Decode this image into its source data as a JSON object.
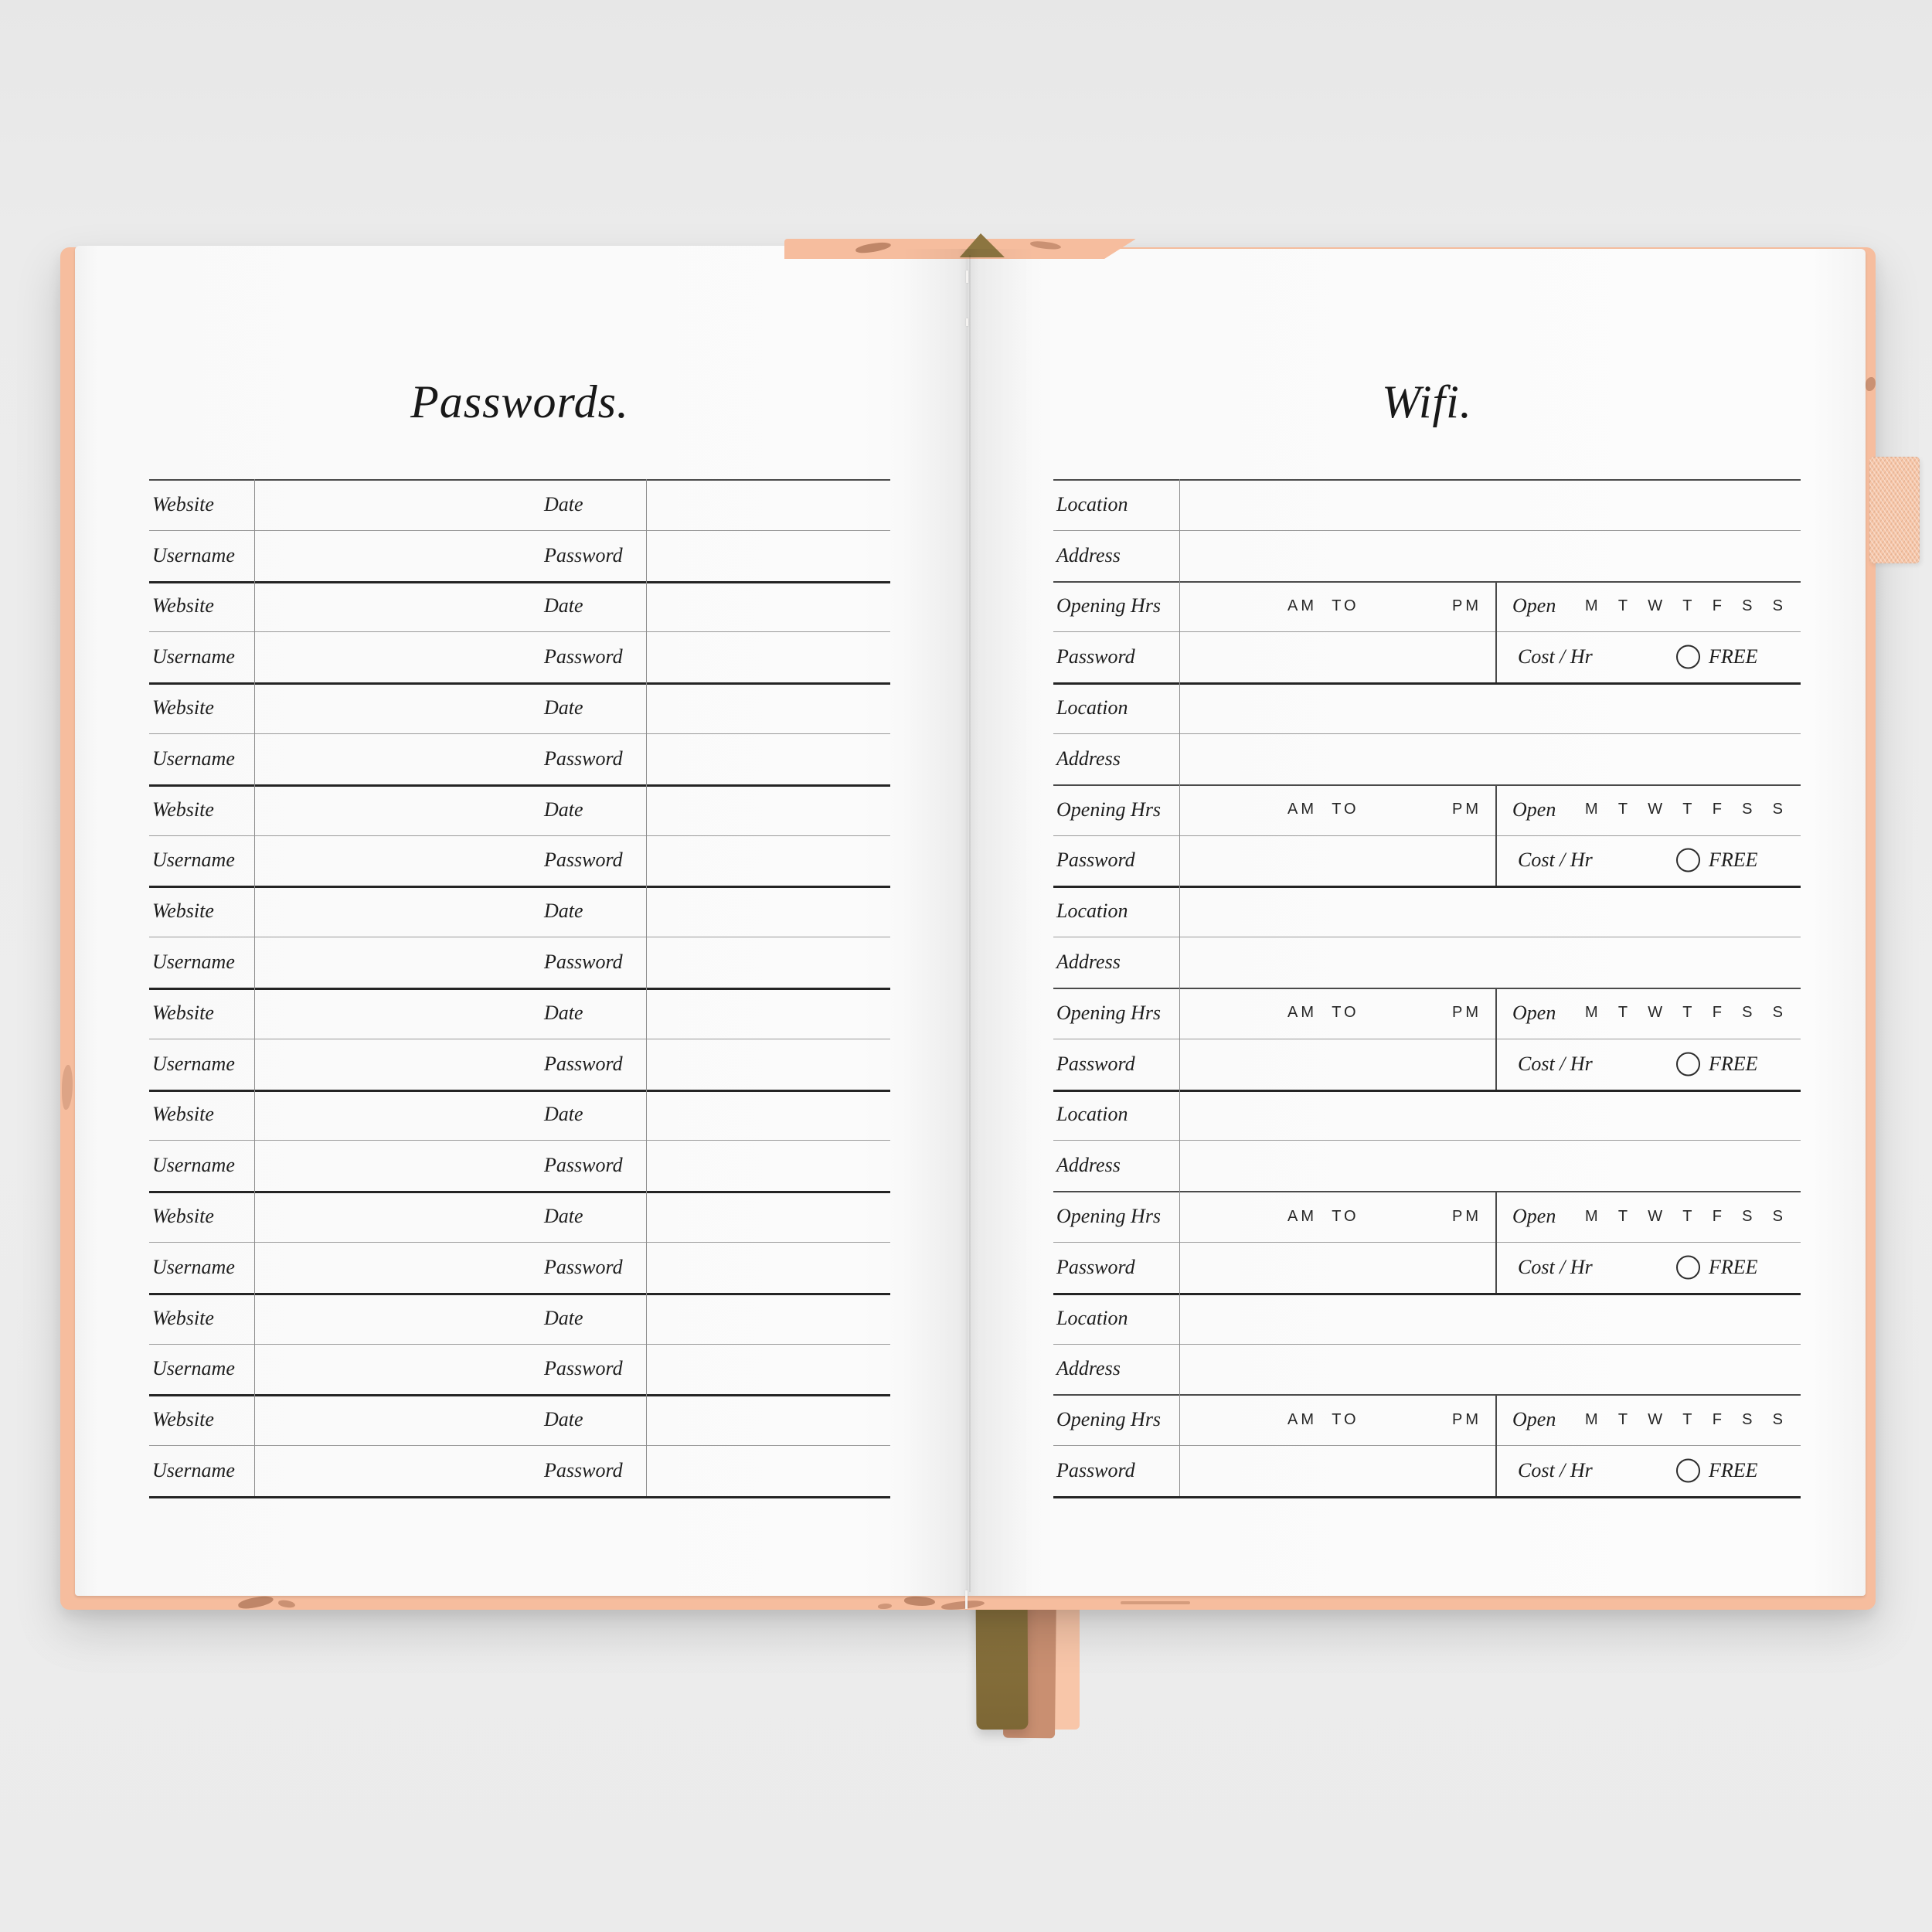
{
  "left_page": {
    "title": "Passwords.",
    "rows": [
      {
        "label": "Website",
        "field": "Date"
      },
      {
        "label": "Username",
        "field": "Password"
      },
      {
        "label": "Website",
        "field": "Date"
      },
      {
        "label": "Username",
        "field": "Password"
      },
      {
        "label": "Website",
        "field": "Date"
      },
      {
        "label": "Username",
        "field": "Password"
      },
      {
        "label": "Website",
        "field": "Date"
      },
      {
        "label": "Username",
        "field": "Password"
      },
      {
        "label": "Website",
        "field": "Date"
      },
      {
        "label": "Username",
        "field": "Password"
      },
      {
        "label": "Website",
        "field": "Date"
      },
      {
        "label": "Username",
        "field": "Password"
      },
      {
        "label": "Website",
        "field": "Date"
      },
      {
        "label": "Username",
        "field": "Password"
      },
      {
        "label": "Website",
        "field": "Date"
      },
      {
        "label": "Username",
        "field": "Password"
      },
      {
        "label": "Website",
        "field": "Date"
      },
      {
        "label": "Username",
        "field": "Password"
      },
      {
        "label": "Website",
        "field": "Date"
      },
      {
        "label": "Username",
        "field": "Password"
      }
    ]
  },
  "right_page": {
    "title": "Wifi.",
    "blocks": [
      {
        "location_label": "Location",
        "address_label": "Address",
        "opening_label": "Opening Hrs",
        "time_prefix": "AM TO",
        "time_suffix": "PM",
        "open_label": "Open",
        "days": [
          "M",
          "T",
          "W",
          "T",
          "F",
          "S",
          "S"
        ],
        "password_label": "Password",
        "cost_label": "Cost / Hr",
        "free_label": "FREE"
      },
      {
        "location_label": "Location",
        "address_label": "Address",
        "opening_label": "Opening Hrs",
        "time_prefix": "AM TO",
        "time_suffix": "PM",
        "open_label": "Open",
        "days": [
          "M",
          "T",
          "W",
          "T",
          "F",
          "S",
          "S"
        ],
        "password_label": "Password",
        "cost_label": "Cost / Hr",
        "free_label": "FREE"
      },
      {
        "location_label": "Location",
        "address_label": "Address",
        "opening_label": "Opening Hrs",
        "time_prefix": "AM TO",
        "time_suffix": "PM",
        "open_label": "Open",
        "days": [
          "M",
          "T",
          "W",
          "T",
          "F",
          "S",
          "S"
        ],
        "password_label": "Password",
        "cost_label": "Cost / Hr",
        "free_label": "FREE"
      },
      {
        "location_label": "Location",
        "address_label": "Address",
        "opening_label": "Opening Hrs",
        "time_prefix": "AM TO",
        "time_suffix": "PM",
        "open_label": "Open",
        "days": [
          "M",
          "T",
          "W",
          "T",
          "F",
          "S",
          "S"
        ],
        "password_label": "Password",
        "cost_label": "Cost / Hr",
        "free_label": "FREE"
      },
      {
        "location_label": "Location",
        "address_label": "Address",
        "opening_label": "Opening Hrs",
        "time_prefix": "AM TO",
        "time_suffix": "PM",
        "open_label": "Open",
        "days": [
          "M",
          "T",
          "W",
          "T",
          "F",
          "S",
          "S"
        ],
        "password_label": "Password",
        "cost_label": "Cost / Hr",
        "free_label": "FREE"
      }
    ]
  },
  "palette": {
    "cover": "#f6bd9e",
    "leaf": "#bf8668",
    "ribbon_olive": "#8c7540",
    "ribbon_tan": "#c98f71",
    "ribbon_light": "#f8c6a9",
    "elastic": "#f7c6a8",
    "page": "#fafafa",
    "background": "#ebebeb",
    "ink": "#1d1d1d"
  }
}
